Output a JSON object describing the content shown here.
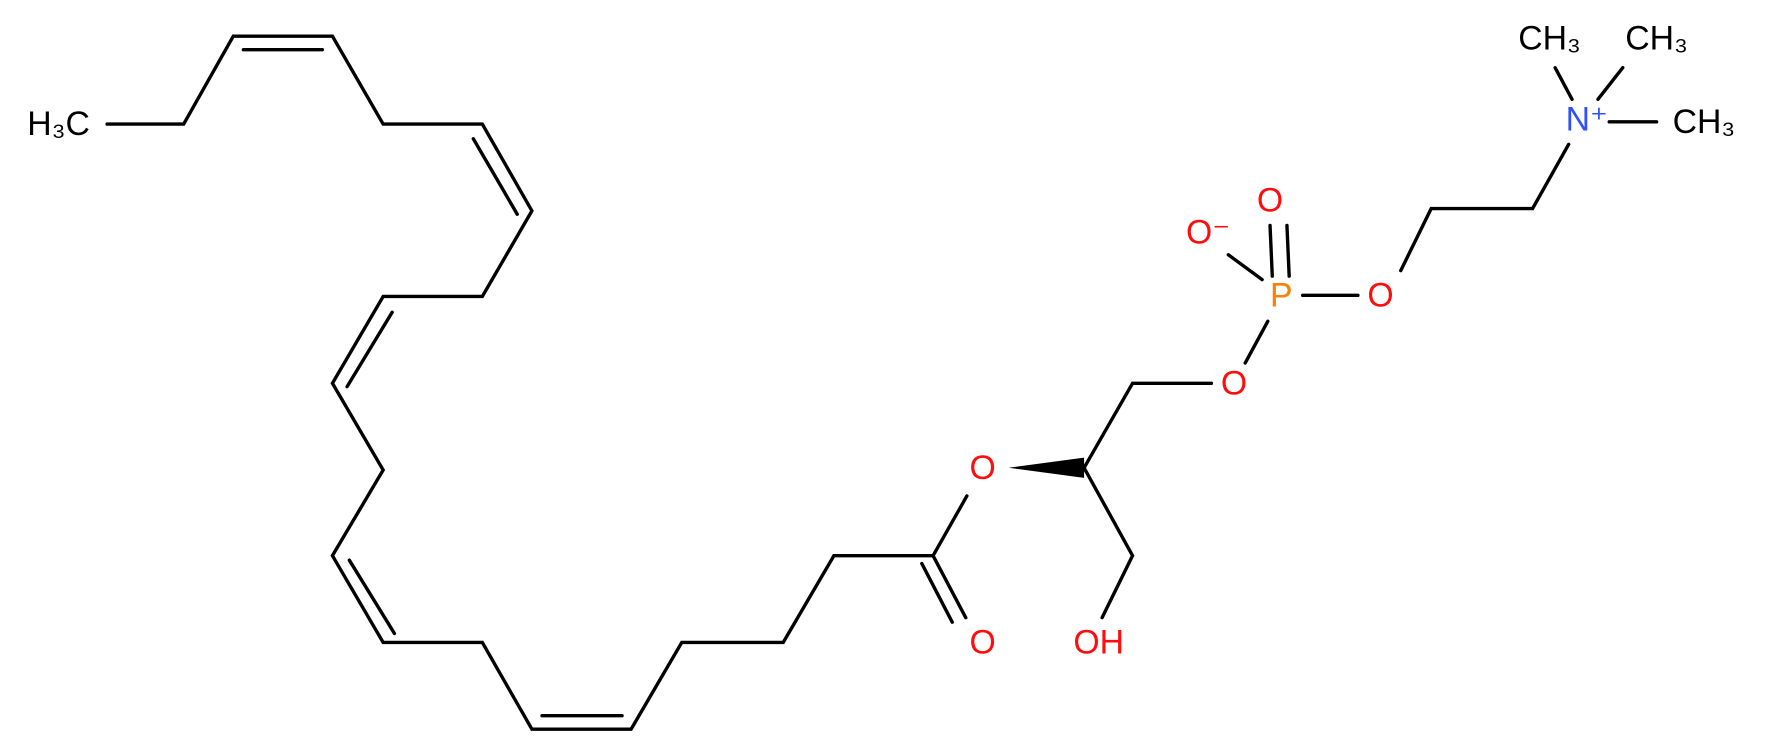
{
  "atoms": [
    {
      "label": "H₃C"
    },
    {
      "label": "O"
    },
    {
      "label": "O"
    },
    {
      "label": "OH"
    },
    {
      "label": "O"
    },
    {
      "label": "P"
    },
    {
      "label": "O⁻"
    },
    {
      "label": "O"
    },
    {
      "label": "O"
    },
    {
      "label": "N⁺"
    },
    {
      "label": "CH₃"
    },
    {
      "label": "CH₃"
    },
    {
      "label": "CH₃"
    }
  ]
}
